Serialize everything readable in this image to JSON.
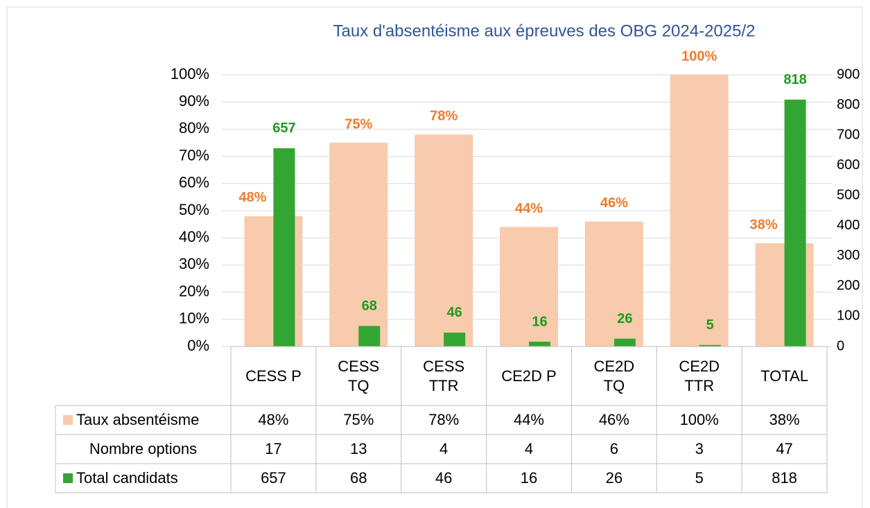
{
  "chart_data": {
    "type": "bar",
    "title": "Taux d'absentéisme aux épreuves des OBG 2024-2025/2",
    "categories": [
      "CESS P",
      "CESS TQ",
      "CESS TTR",
      "CE2D P",
      "CE2D TQ",
      "CE2D TTR",
      "TOTAL"
    ],
    "series": [
      {
        "name": "Taux absentéisme",
        "color": "#f8cbad",
        "label_color": "#f07b2a",
        "values": [
          48,
          75,
          78,
          44,
          46,
          100,
          38
        ],
        "value_labels": [
          "48%",
          "75%",
          "78%",
          "44%",
          "46%",
          "100%",
          "38%"
        ]
      },
      {
        "name": "Nombre options",
        "values": [
          17,
          13,
          4,
          4,
          6,
          3,
          47
        ]
      },
      {
        "name": "Total candidats",
        "color": "#33a532",
        "label_color": "#1e9a1e",
        "axis": "y2",
        "values": [
          657,
          68,
          46,
          16,
          26,
          5,
          818
        ]
      }
    ],
    "ylim": [
      0,
      100
    ],
    "yticks": [
      {
        "value": 0,
        "label": "0%"
      },
      {
        "value": 10,
        "label": "10%"
      },
      {
        "value": 20,
        "label": "20%"
      },
      {
        "value": 30,
        "label": "30%"
      },
      {
        "value": 40,
        "label": "40%"
      },
      {
        "value": 50,
        "label": "50%"
      },
      {
        "value": 60,
        "label": "60%"
      },
      {
        "value": 70,
        "label": "70%"
      },
      {
        "value": 80,
        "label": "80%"
      },
      {
        "value": 90,
        "label": "90%"
      },
      {
        "value": 100,
        "label": "100%"
      }
    ],
    "y2lim": [
      0,
      900
    ],
    "y2ticks": [
      0,
      100,
      200,
      300,
      400,
      500,
      600,
      700,
      800,
      900
    ],
    "grid": true,
    "data_table": true
  }
}
